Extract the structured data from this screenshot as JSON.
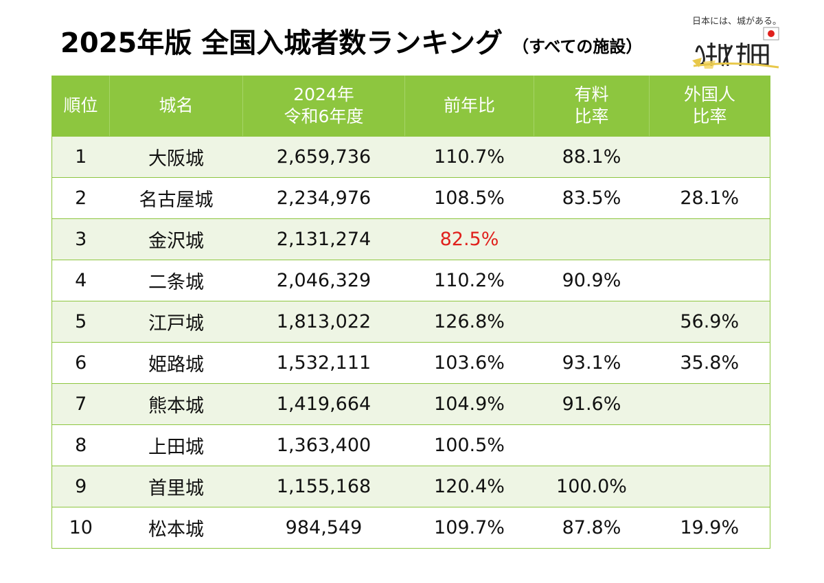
{
  "title": {
    "main": "2025年版 全国入城者数ランキング",
    "sub": "（すべての施設）"
  },
  "logo": {
    "tagline": "日本には、城がある。",
    "brand": "城旅"
  },
  "colors": {
    "header_bg": "#8dc63f",
    "row_alt_bg": "#eef5e4",
    "highlight_red": "#e0201c"
  },
  "table": {
    "headers": {
      "rank": "順位",
      "name": "城名",
      "visitors_line1": "2024年",
      "visitors_line2": "令和6年度",
      "yoy": "前年比",
      "paid_line1": "有料",
      "paid_line2": "比率",
      "foreign_line1": "外国人",
      "foreign_line2": "比率"
    },
    "rows": [
      {
        "rank": "1",
        "name": "大阪城",
        "visitors": "2,659,736",
        "yoy": "110.7%",
        "paid": "88.1%",
        "foreign": ""
      },
      {
        "rank": "2",
        "name": "名古屋城",
        "visitors": "2,234,976",
        "yoy": "108.5%",
        "paid": "83.5%",
        "foreign": "28.1%"
      },
      {
        "rank": "3",
        "name": "金沢城",
        "visitors": "2,131,274",
        "yoy": "82.5%",
        "paid": "",
        "foreign": ""
      },
      {
        "rank": "4",
        "name": "二条城",
        "visitors": "2,046,329",
        "yoy": "110.2%",
        "paid": "90.9%",
        "foreign": ""
      },
      {
        "rank": "5",
        "name": "江戸城",
        "visitors": "1,813,022",
        "yoy": "126.8%",
        "paid": "",
        "foreign": "56.9%"
      },
      {
        "rank": "6",
        "name": "姫路城",
        "visitors": "1,532,111",
        "yoy": "103.6%",
        "paid": "93.1%",
        "foreign": "35.8%"
      },
      {
        "rank": "7",
        "name": "熊本城",
        "visitors": "1,419,664",
        "yoy": "104.9%",
        "paid": "91.6%",
        "foreign": ""
      },
      {
        "rank": "8",
        "name": "上田城",
        "visitors": "1,363,400",
        "yoy": "100.5%",
        "paid": "",
        "foreign": ""
      },
      {
        "rank": "9",
        "name": "首里城",
        "visitors": "1,155,168",
        "yoy": "120.4%",
        "paid": "100.0%",
        "foreign": ""
      },
      {
        "rank": "10",
        "name": "松本城",
        "visitors": "984,549",
        "yoy": "109.7%",
        "paid": "87.8%",
        "foreign": "19.9%"
      }
    ]
  }
}
